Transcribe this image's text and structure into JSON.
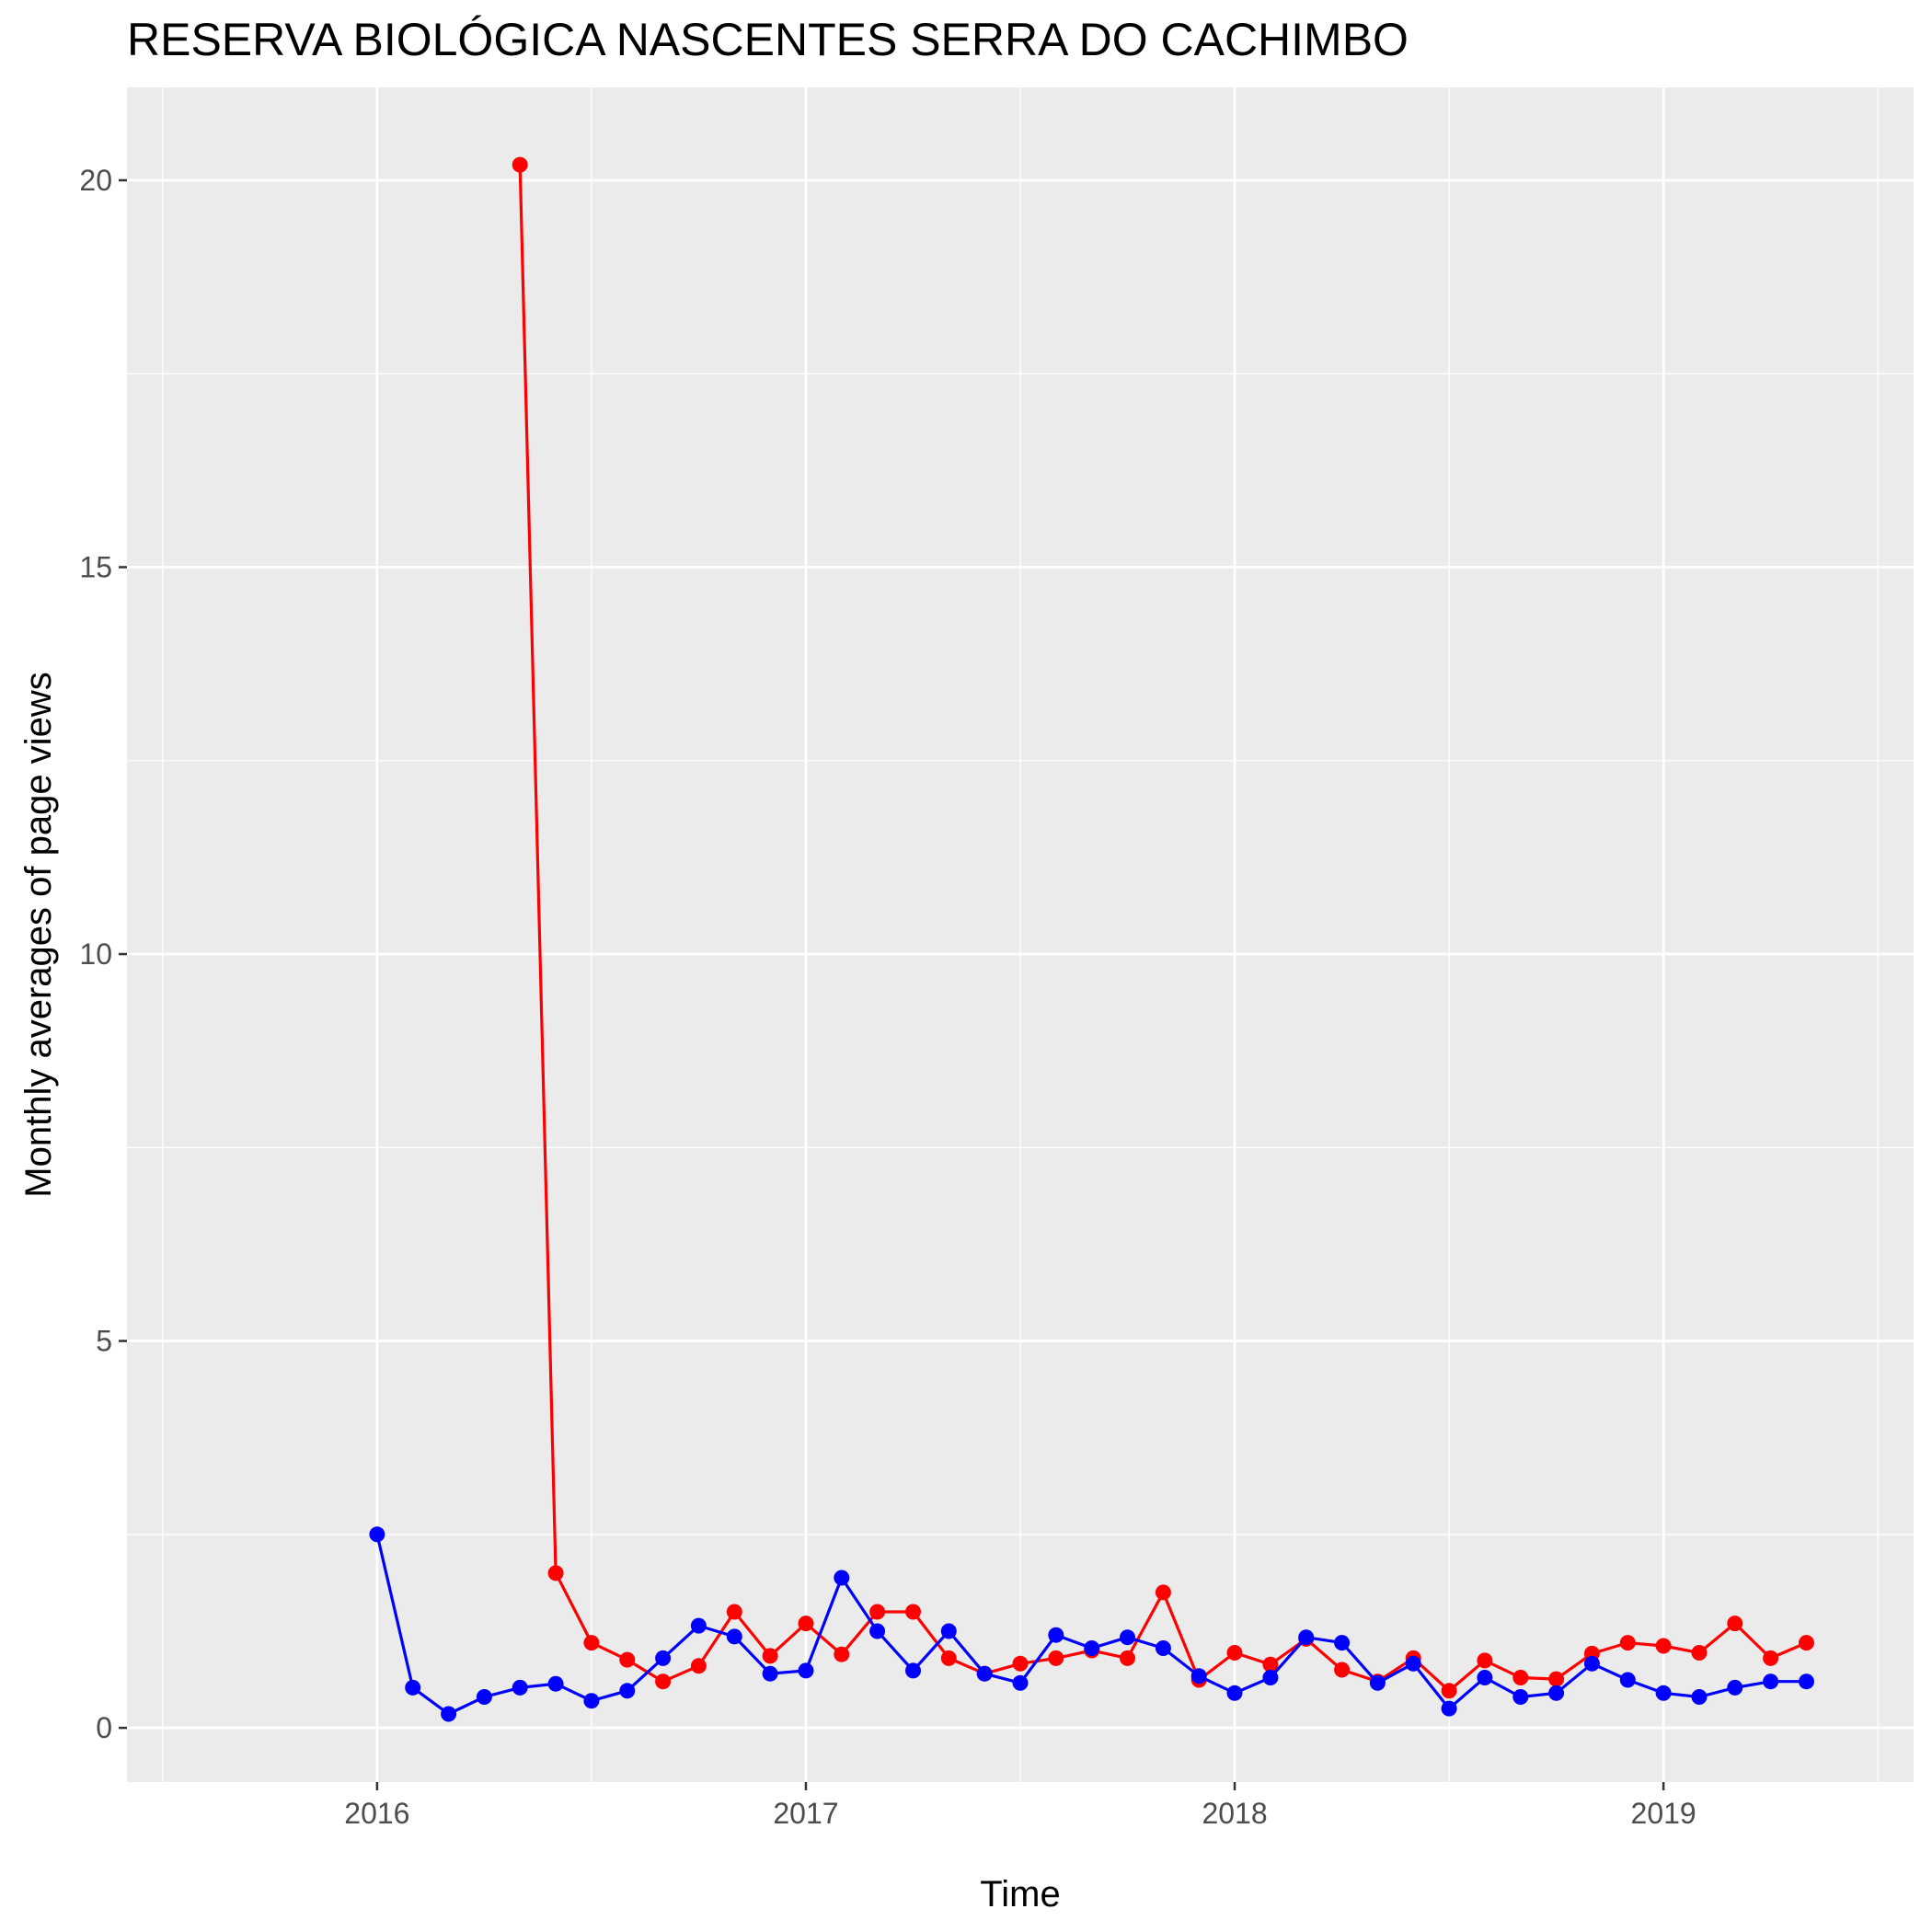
{
  "chart_data": {
    "type": "line",
    "title": "RESERVA BIOLÓGICA NASCENTES SERRA DO CACHIMBO",
    "xlabel": "Time",
    "ylabel": "Monthly averages of page views",
    "x_ticks": [
      "2016",
      "2017",
      "2018",
      "2019"
    ],
    "y_ticks": [
      "0",
      "5",
      "10",
      "15",
      "20"
    ],
    "xlim": [
      "2015-06-01",
      "2019-08-01"
    ],
    "ylim": [
      -0.7,
      21.2
    ],
    "grid": true,
    "legend": "none",
    "series": [
      {
        "color": "#ff0000",
        "x": [
          "2016-05",
          "2016-06",
          "2016-07",
          "2016-08",
          "2016-09",
          "2016-10",
          "2016-11",
          "2016-12",
          "2017-01",
          "2017-02",
          "2017-03",
          "2017-04",
          "2017-05",
          "2017-06",
          "2017-07",
          "2017-08",
          "2017-09",
          "2017-10",
          "2017-11",
          "2017-12",
          "2018-01",
          "2018-02",
          "2018-03",
          "2018-04",
          "2018-05",
          "2018-06",
          "2018-07",
          "2018-08",
          "2018-09",
          "2018-10",
          "2018-11",
          "2018-12",
          "2019-01",
          "2019-02",
          "2019-03",
          "2019-04",
          "2019-05"
        ],
        "values": [
          20.2,
          2.0,
          1.1,
          0.88,
          0.6,
          0.8,
          1.5,
          0.93,
          1.35,
          0.95,
          1.5,
          1.5,
          0.9,
          0.7,
          0.83,
          0.9,
          1.0,
          0.9,
          1.75,
          0.62,
          0.97,
          0.82,
          1.15,
          0.75,
          0.6,
          0.9,
          0.48,
          0.87,
          0.65,
          0.63,
          0.96,
          1.1,
          1.06,
          0.97,
          1.35,
          0.9,
          1.1
        ]
      },
      {
        "color": "#0000ff",
        "x": [
          "2016-01",
          "2016-02",
          "2016-03",
          "2016-04",
          "2016-05",
          "2016-06",
          "2016-07",
          "2016-08",
          "2016-09",
          "2016-10",
          "2016-11",
          "2016-12",
          "2017-01",
          "2017-02",
          "2017-03",
          "2017-04",
          "2017-05",
          "2017-06",
          "2017-07",
          "2017-08",
          "2017-09",
          "2017-10",
          "2017-11",
          "2017-12",
          "2018-01",
          "2018-02",
          "2018-03",
          "2018-04",
          "2018-05",
          "2018-06",
          "2018-07",
          "2018-08",
          "2018-09",
          "2018-10",
          "2018-11",
          "2018-12",
          "2019-01",
          "2019-02",
          "2019-03",
          "2019-04",
          "2019-05"
        ],
        "values": [
          2.5,
          0.52,
          0.18,
          0.4,
          0.52,
          0.57,
          0.35,
          0.48,
          0.9,
          1.32,
          1.18,
          0.7,
          0.74,
          1.94,
          1.25,
          0.74,
          1.25,
          0.7,
          0.58,
          1.2,
          1.03,
          1.17,
          1.03,
          0.67,
          0.45,
          0.65,
          1.17,
          1.1,
          0.58,
          0.83,
          0.25,
          0.65,
          0.4,
          0.45,
          0.83,
          0.62,
          0.45,
          0.4,
          0.52,
          0.6,
          0.6
        ]
      }
    ]
  }
}
